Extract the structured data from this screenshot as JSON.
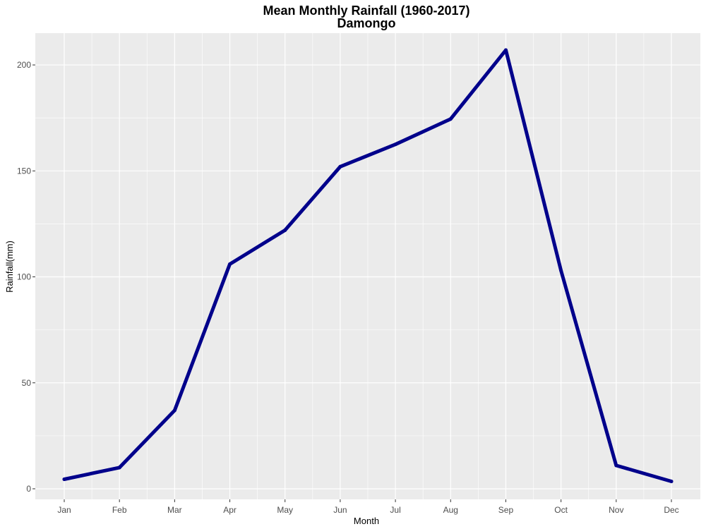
{
  "chart_data": {
    "type": "line",
    "title": "Mean Monthly Rainfall (1960-2017)",
    "subtitle": "Damongo",
    "xlabel": "Month",
    "ylabel": "Rainfall(mm)",
    "categories": [
      "Jan",
      "Feb",
      "Mar",
      "Apr",
      "May",
      "Jun",
      "Jul",
      "Aug",
      "Sep",
      "Oct",
      "Nov",
      "Dec"
    ],
    "series": [
      {
        "values": [
          4.5,
          10.0,
          37.0,
          106.0,
          122.0,
          152.0,
          162.5,
          174.5,
          207.0,
          103.0,
          11.0,
          3.5
        ]
      }
    ],
    "ylim": [
      -5,
      215
    ],
    "yticks": [
      0,
      50,
      100,
      150,
      200
    ],
    "grid": true,
    "legend": "none",
    "colors": {
      "line": "#00008B",
      "panel_background": "#EBEBEB",
      "grid": "#FFFFFF",
      "tick_text": "#4D4D4D"
    }
  }
}
